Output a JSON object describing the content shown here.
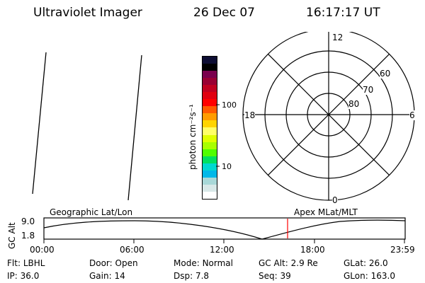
{
  "header": {
    "instrument": "Ultraviolet Imager",
    "date": "26 Dec 07",
    "time": "16:17:17 UT"
  },
  "colorbar": {
    "unit_label": "photon cm⁻²s⁻¹",
    "tick_labels": [
      "100",
      "10"
    ],
    "colors": [
      "#0d0d33",
      "#000000",
      "#7a004d",
      "#990033",
      "#c00020",
      "#e00010",
      "#ff0000",
      "#ff5a00",
      "#ff9c00",
      "#ffd400",
      "#ffff66",
      "#e0ff00",
      "#a8ff00",
      "#50ff00",
      "#00e060",
      "#00d8d0",
      "#00b8e8",
      "#a8d8d8",
      "#d8e8e8",
      "#ffffff"
    ]
  },
  "polar": {
    "mlt_labels": {
      "top": "12",
      "left": "18",
      "right": "6",
      "bottom": "0"
    },
    "lat_labels": [
      "60",
      "70",
      "80"
    ]
  },
  "timeline": {
    "y_axis_title": "GC Alt",
    "y_ticks": [
      "9.0",
      "1.8"
    ],
    "left_caption": "Geographic Lat/Lon",
    "right_caption": "Apex MLat/MLT",
    "x_ticks": [
      "00:00",
      "06:00",
      "12:00",
      "18:00",
      "23:59"
    ],
    "marker_color": "#ff0000"
  },
  "status": [
    {
      "label": "Flt:",
      "value": "LBHL"
    },
    {
      "label": "Door:",
      "value": "Open"
    },
    {
      "label": "Mode:",
      "value": "Normal"
    },
    {
      "label": "GC Alt:",
      "value": "2.9 Re"
    },
    {
      "label": "GLat:",
      "value": "26.0"
    },
    {
      "label": "IP:",
      "value": "36.0"
    },
    {
      "label": "Gain:",
      "value": "14"
    },
    {
      "label": "Dsp:",
      "value": "7.8"
    },
    {
      "label": "Seq:",
      "value": "39"
    },
    {
      "label": "GLon:",
      "value": "163.0"
    }
  ]
}
